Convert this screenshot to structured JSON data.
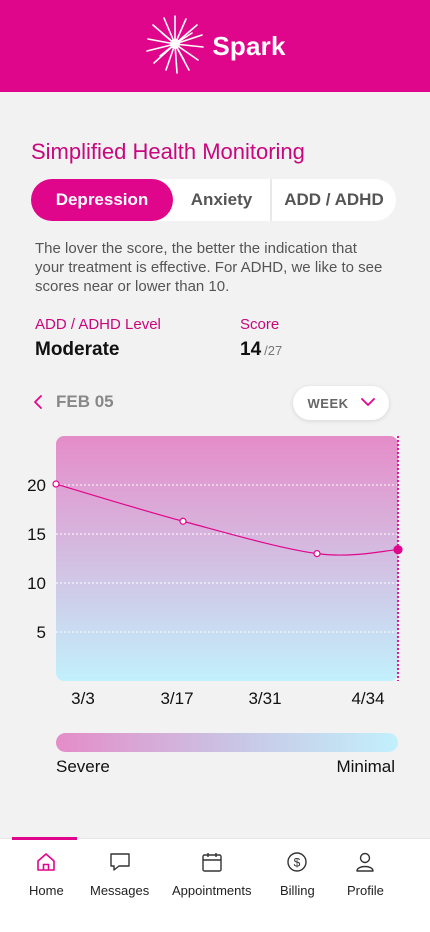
{
  "header": {
    "brand": "Spark",
    "logo_icon": "starburst-icon",
    "background": "#e0068c"
  },
  "page_title": "Simplified Health Monitoring",
  "segments": [
    {
      "label": "Depression",
      "active": true
    },
    {
      "label": "Anxiety",
      "active": false
    },
    {
      "label": "ADD / ADHD",
      "active": false
    }
  ],
  "description": "The lover the score, the better the indication that your treatment is effective. For ADHD, we like to see scores near or lower than 10.",
  "level": {
    "label": "ADD / ADHD Level",
    "value": "Moderate"
  },
  "score": {
    "label": "Score",
    "value": "14",
    "max": "/27"
  },
  "date_nav": {
    "date": "FEB 05",
    "prev_icon": "chevron-left-icon"
  },
  "range_select": {
    "label": "WEEK",
    "icon": "chevron-down-icon"
  },
  "chart_data": {
    "type": "line",
    "x_labels": [
      "3/3",
      "3/17",
      "3/31",
      "4/34"
    ],
    "y_ticks": [
      20,
      15,
      10,
      5
    ],
    "ylim": [
      0,
      25
    ],
    "points": [
      {
        "x": "3/3",
        "y": 20.1
      },
      {
        "x": "3/17",
        "y": 16.3
      },
      {
        "x": "3/31",
        "y": 13.0
      },
      {
        "x": "4/34",
        "y": 13.4
      }
    ],
    "grid": true,
    "line_color": "#e0068c",
    "gradient_top": "#e58cc8",
    "gradient_bottom": "#c2f0fc"
  },
  "legend": {
    "left": "Severe",
    "right": "Minimal"
  },
  "tabbar": {
    "items": [
      {
        "label": "Home",
        "icon": "home-icon",
        "active": true
      },
      {
        "label": "Messages",
        "icon": "message-icon",
        "active": false
      },
      {
        "label": "Appointments",
        "icon": "calendar-icon",
        "active": false
      },
      {
        "label": "Billing",
        "icon": "dollar-icon",
        "active": false
      },
      {
        "label": "Profile",
        "icon": "profile-icon",
        "active": false
      }
    ]
  }
}
